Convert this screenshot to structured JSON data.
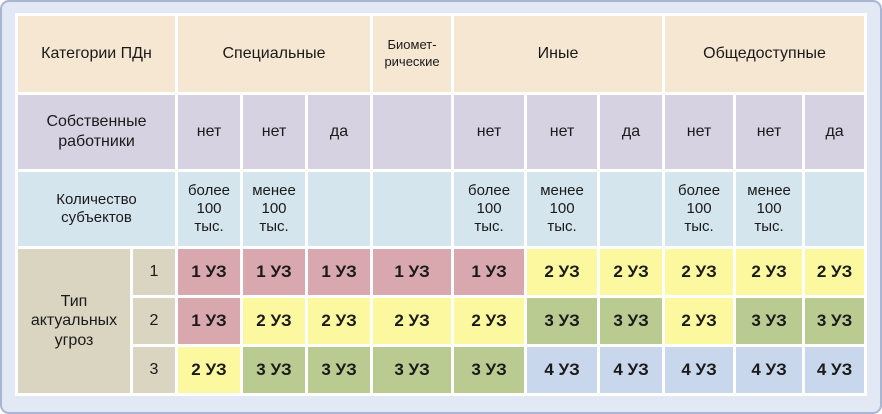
{
  "table": {
    "corner_label": "Категории ПДн",
    "groups": [
      {
        "label": "Специальные",
        "span": 3,
        "small": false
      },
      {
        "label": "Биомет-\nрические",
        "span": 1,
        "small": true
      },
      {
        "label": "Иные",
        "span": 3,
        "small": false
      },
      {
        "label": "Общедоступные",
        "span": 3,
        "small": false
      }
    ],
    "row2_label": "Собственные\nработники",
    "row2_values": [
      "нет",
      "нет",
      "да",
      "",
      "нет",
      "нет",
      "да",
      "нет",
      "нет",
      "да"
    ],
    "row3_label": "Количество\nсубъектов",
    "row3_values": [
      "более\n100\nтыс.",
      "менее\n100\nтыс.",
      "",
      "",
      "более\n100\nтыс.",
      "менее\n100\nтыс.",
      "",
      "более\n100\nтыс.",
      "менее\n100\nтыс.",
      ""
    ],
    "threat_label": "Тип\nактуальных\nугроз",
    "threat_rows": [
      {
        "num": "1",
        "cells": [
          "1 УЗ",
          "1 УЗ",
          "1 УЗ",
          "1 УЗ",
          "1 УЗ",
          "2 УЗ",
          "2 УЗ",
          "2 УЗ",
          "2 УЗ",
          "2 УЗ"
        ]
      },
      {
        "num": "2",
        "cells": [
          "1 УЗ",
          "2 УЗ",
          "2 УЗ",
          "2 УЗ",
          "2 УЗ",
          "3 УЗ",
          "3 УЗ",
          "2 УЗ",
          "3 УЗ",
          "3 УЗ"
        ]
      },
      {
        "num": "3",
        "cells": [
          "2 УЗ",
          "3 УЗ",
          "3 УЗ",
          "3 УЗ",
          "3 УЗ",
          "4 УЗ",
          "4 УЗ",
          "4 УЗ",
          "4 УЗ",
          "4 УЗ"
        ]
      }
    ]
  },
  "colors": {
    "page_background": "#e3e8f5",
    "frame_border": "#a9b5d3",
    "grid_gap": "#ffffff",
    "header_cream": "#f6e7d2",
    "row_lavender": "#d7d2e1",
    "row_lightblue": "#d4e5ed",
    "label_beige": "#dad5c0",
    "level_1": "#d9a8ae",
    "level_2": "#fbf8a0",
    "level_3": "#b9cb90",
    "level_4": "#c9d7ec",
    "text": "#1a1a1a"
  },
  "chart_data": {
    "type": "table",
    "corner": "Категории ПДн",
    "column_groups": [
      {
        "label": "Специальные",
        "columns": 3
      },
      {
        "label": "Биометрические",
        "columns": 1
      },
      {
        "label": "Иные",
        "columns": 3
      },
      {
        "label": "Общедоступные",
        "columns": 3
      }
    ],
    "row_headers": [
      "Собственные работники",
      "Количество субъектов",
      "Тип актуальных угроз"
    ],
    "own_employees": [
      "нет",
      "нет",
      "да",
      "",
      "нет",
      "нет",
      "да",
      "нет",
      "нет",
      "да"
    ],
    "subject_count": [
      "более 100 тыс.",
      "менее 100 тыс.",
      "",
      "",
      "более 100 тыс.",
      "менее 100 тыс.",
      "",
      "более 100 тыс.",
      "менее 100 тыс.",
      ""
    ],
    "threat_type_rows": [
      {
        "threat_type": 1,
        "levels": [
          "1 УЗ",
          "1 УЗ",
          "1 УЗ",
          "1 УЗ",
          "1 УЗ",
          "2 УЗ",
          "2 УЗ",
          "2 УЗ",
          "2 УЗ",
          "2 УЗ"
        ]
      },
      {
        "threat_type": 2,
        "levels": [
          "1 УЗ",
          "2 УЗ",
          "2 УЗ",
          "2 УЗ",
          "2 УЗ",
          "3 УЗ",
          "3 УЗ",
          "2 УЗ",
          "3 УЗ",
          "3 УЗ"
        ]
      },
      {
        "threat_type": 3,
        "levels": [
          "2 УЗ",
          "3 УЗ",
          "3 УЗ",
          "3 УЗ",
          "3 УЗ",
          "4 УЗ",
          "4 УЗ",
          "4 УЗ",
          "4 УЗ",
          "4 УЗ"
        ]
      }
    ],
    "level_colors": {
      "1 УЗ": "#d9a8ae",
      "2 УЗ": "#fbf8a0",
      "3 УЗ": "#b9cb90",
      "4 УЗ": "#c9d7ec"
    },
    "grid": true,
    "legend_position": "none"
  }
}
